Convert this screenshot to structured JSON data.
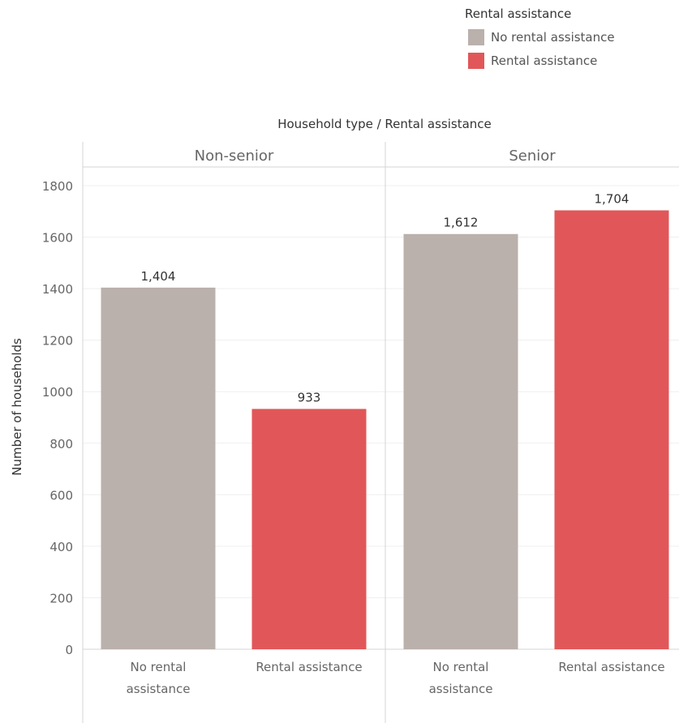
{
  "legend": {
    "title": "Rental assistance",
    "items": [
      {
        "label": "No rental assistance",
        "color": "#bab0ac"
      },
      {
        "label": "Rental assistance",
        "color": "#e15759"
      }
    ]
  },
  "chart_data": {
    "type": "bar",
    "title": "Household type / Rental assistance",
    "ylabel": "Number of households",
    "ylim": [
      0,
      1800
    ],
    "yticks": [
      0,
      200,
      400,
      600,
      800,
      1000,
      1200,
      1400,
      1600,
      1800
    ],
    "grid": true,
    "legend_position": "top-right",
    "panels": [
      {
        "name": "Non-senior",
        "bars": [
          {
            "category": "No rental assistance",
            "category_lines": [
              "No rental",
              "assistance"
            ],
            "value": 1404,
            "label": "1,404",
            "color": "#bab0ac"
          },
          {
            "category": "Rental assistance",
            "category_lines": [
              "Rental assistance"
            ],
            "value": 933,
            "label": "933",
            "color": "#e15759"
          }
        ]
      },
      {
        "name": "Senior",
        "bars": [
          {
            "category": "No rental assistance",
            "category_lines": [
              "No rental",
              "assistance"
            ],
            "value": 1612,
            "label": "1,612",
            "color": "#bab0ac"
          },
          {
            "category": "Rental assistance",
            "category_lines": [
              "Rental assistance"
            ],
            "value": 1704,
            "label": "1,704",
            "color": "#e15759"
          }
        ]
      }
    ]
  }
}
